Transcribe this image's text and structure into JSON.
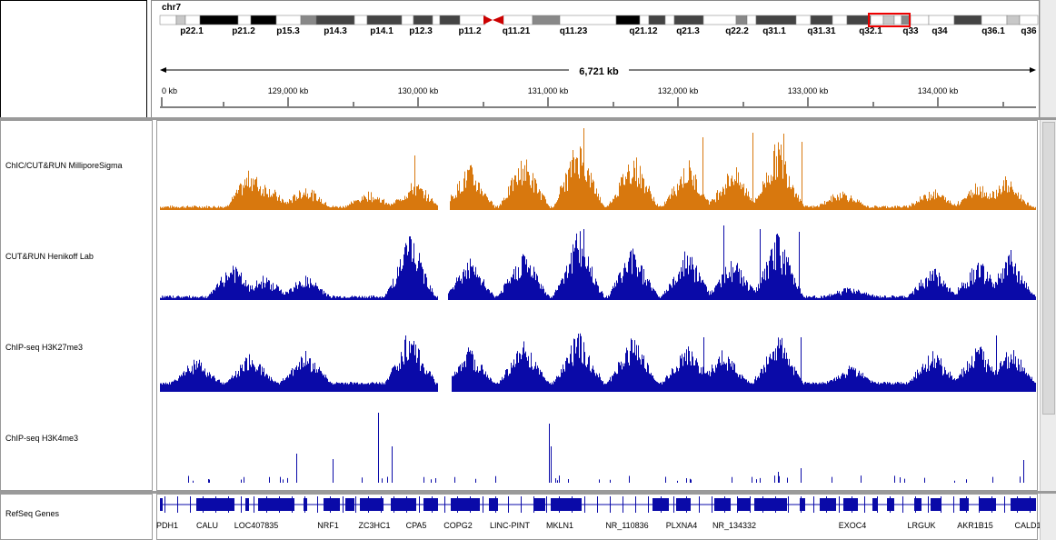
{
  "header": {
    "chromosome": "chr7",
    "span_label": "6,721 kb",
    "ruler_ticks": [
      "0 kb",
      "129,000 kb",
      "130,000 kb",
      "131,000 kb",
      "132,000 kb",
      "133,000 kb",
      "134,000 kb"
    ],
    "bands": [
      "p22.1",
      "p21.2",
      "p15.3",
      "p14.3",
      "p14.1",
      "p12.3",
      "p11.2",
      "q11.21",
      "q11.23",
      "q21.12",
      "q21.3",
      "q22.2",
      "q31.1",
      "q31.31",
      "q32.1",
      "q33",
      "q34",
      "q36.1",
      "q36"
    ]
  },
  "tracks": [
    {
      "name": "ChIC/CUT&RUN MilliporeSigma",
      "color": "#d8780e"
    },
    {
      "name": "CUT&RUN Henikoff Lab",
      "color": "#0a0aa8"
    },
    {
      "name": "ChIP-seq H3K27me3",
      "color": "#0a0aa8"
    },
    {
      "name": "ChIP-seq H3K4me3",
      "color": "#0a0aa8"
    }
  ],
  "genes_track": {
    "name": "RefSeq Genes",
    "color": "#0a0aa8",
    "genes": [
      "PDH1",
      "CALU",
      "LOC407835",
      "NRF1",
      "ZC3HC1",
      "CPA5",
      "COPG2",
      "LINC-PINT",
      "MKLN1",
      "NR_110836",
      "PLXNA4",
      "NR_134332",
      "EXOC4",
      "LRGUK",
      "AKR1B15",
      "CALD1"
    ]
  }
}
